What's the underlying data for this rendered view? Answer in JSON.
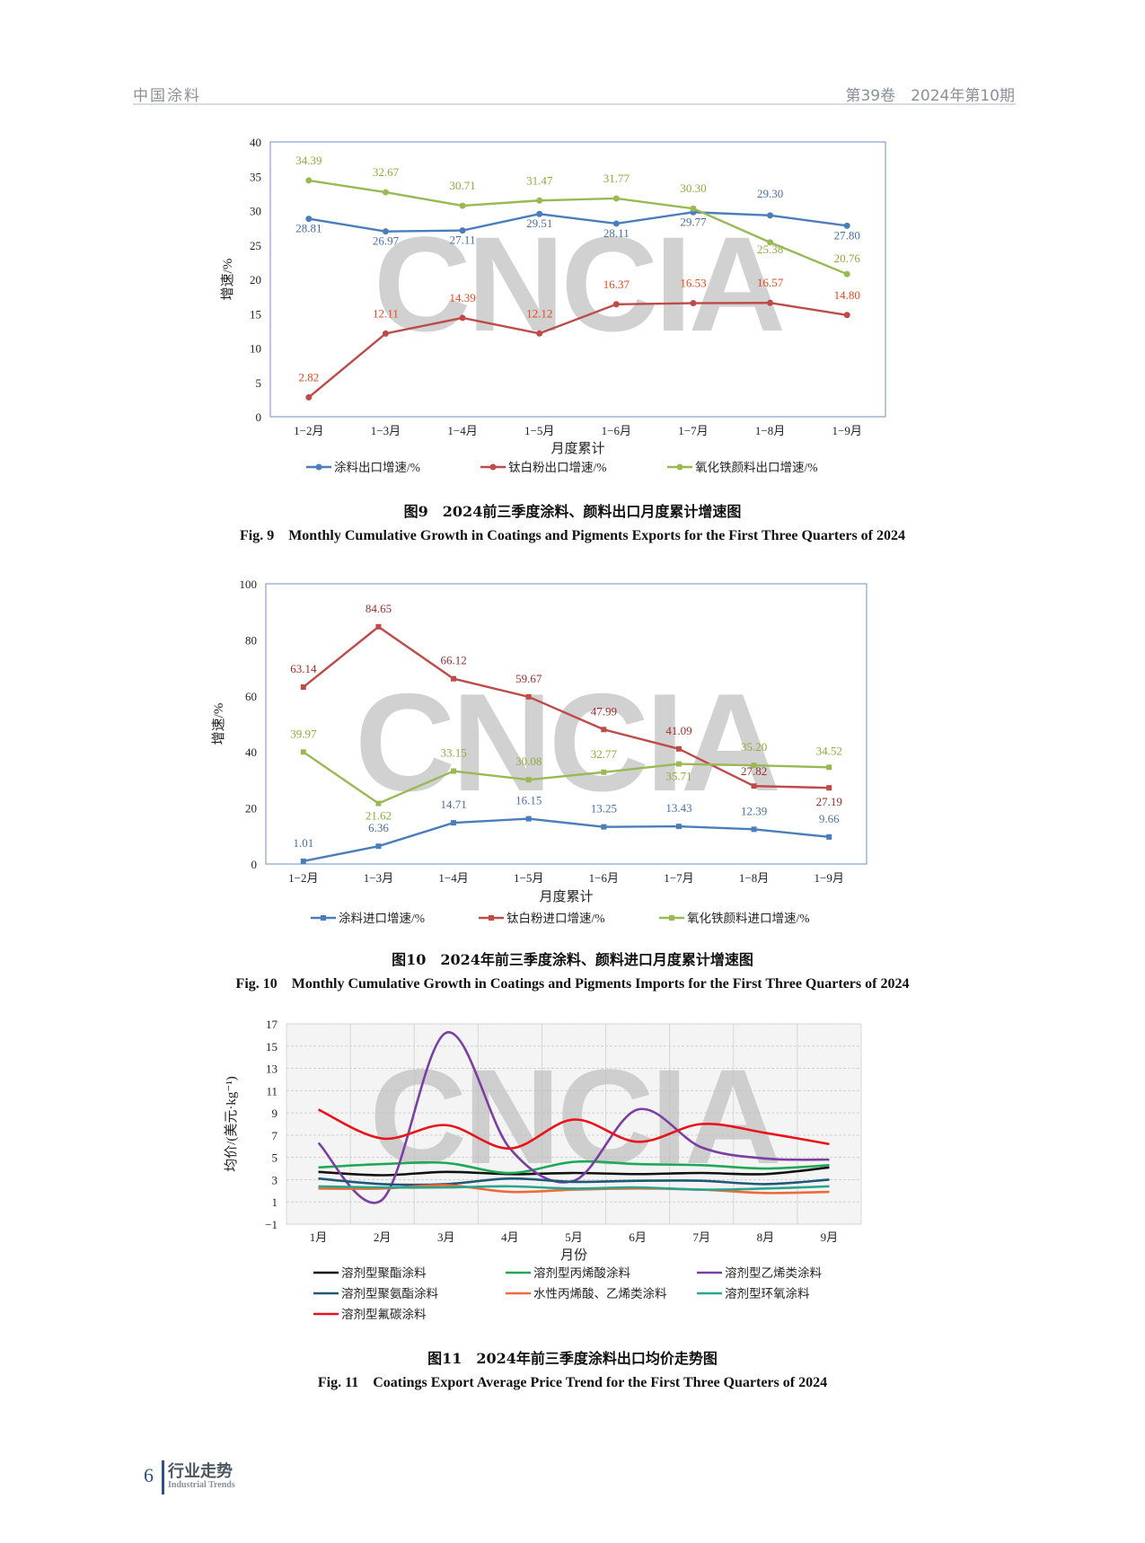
{
  "header": {
    "journal": "中国涂料",
    "issue": "第39卷　2024年第10期"
  },
  "footer": {
    "page": "6",
    "section_cn": "行业走势",
    "section_en": "Industrial Trends"
  },
  "watermark": "CNCIA",
  "chart_data": [
    {
      "type": "line",
      "caption_cn": "图9　2024前三季度涂料、颜料出口月度累计增速图",
      "caption_en": "Fig. 9　Monthly Cumulative Growth in Coatings and Pigments Exports for the First Three Quarters of 2024",
      "xlabel": "月度累计",
      "ylabel": "增速/%",
      "ylim": [
        0,
        40
      ],
      "yticks": [
        0,
        5,
        10,
        15,
        20,
        25,
        30,
        35,
        40
      ],
      "categories": [
        "1−2月",
        "1−3月",
        "1−4月",
        "1−5月",
        "1−6月",
        "1−7月",
        "1−8月",
        "1−9月"
      ],
      "legend_position": "bottom",
      "series": [
        {
          "name": "涂料出口增速/%",
          "color": "#4a7ebb",
          "label_color": "#4a6fa5",
          "values": [
            28.81,
            26.97,
            27.11,
            29.51,
            28.11,
            29.77,
            29.3,
            27.8
          ]
        },
        {
          "name": "钛白粉出口增速/%",
          "color": "#be4b48",
          "label_color": "#e8481c",
          "values": [
            2.82,
            12.11,
            14.39,
            12.12,
            16.37,
            16.53,
            16.57,
            14.8
          ]
        },
        {
          "name": "氧化铁颜料出口增速/%",
          "color": "#98b954",
          "label_color": "#8faa3c",
          "values": [
            34.39,
            32.67,
            30.71,
            31.47,
            31.77,
            30.3,
            25.38,
            20.76
          ]
        }
      ]
    },
    {
      "type": "line",
      "caption_cn": "图10　2024年前三季度涂料、颜料进口月度累计增速图",
      "caption_en": "Fig. 10　Monthly Cumulative Growth in Coatings and Pigments Imports for the First Three Quarters of 2024",
      "xlabel": "月度累计",
      "ylabel": "增速/%",
      "ylim": [
        0,
        100
      ],
      "yticks": [
        0,
        20,
        40,
        60,
        80,
        100
      ],
      "categories": [
        "1−2月",
        "1−3月",
        "1−4月",
        "1−5月",
        "1−6月",
        "1−7月",
        "1−8月",
        "1−9月"
      ],
      "legend_position": "bottom",
      "series": [
        {
          "name": "涂料进口增速/%",
          "color": "#4a7ebb",
          "label_color": "#4a6fa5",
          "values": [
            1.01,
            6.36,
            14.71,
            16.15,
            13.25,
            13.43,
            12.39,
            9.66
          ]
        },
        {
          "name": "钛白粉进口增速/%",
          "color": "#be4b48",
          "label_color": "#9b2c2c",
          "values": [
            63.14,
            84.65,
            66.12,
            59.67,
            47.99,
            41.09,
            27.82,
            27.19
          ]
        },
        {
          "name": "氧化铁颜料进口增速/%",
          "color": "#98b954",
          "label_color": "#8faa3c",
          "values": [
            39.97,
            21.62,
            33.15,
            30.08,
            32.77,
            35.71,
            35.2,
            34.52
          ]
        }
      ]
    },
    {
      "type": "line",
      "smooth": true,
      "grid": true,
      "caption_cn": "图11　2024年前三季度涂料出口均价走势图",
      "caption_en": "Fig. 11　Coatings Export Average Price Trend for the First Three Quarters of 2024",
      "xlabel": "月份",
      "ylabel": "均价/(美元·kg⁻¹)",
      "ylim": [
        -1,
        17
      ],
      "yticks": [
        -1,
        1,
        3,
        5,
        7,
        9,
        11,
        13,
        15,
        17
      ],
      "ytick_labels": [
        "−1",
        "1",
        "3",
        "5",
        "7",
        "9",
        "11",
        "13",
        "15",
        "17"
      ],
      "categories": [
        "1月",
        "2月",
        "3月",
        "4月",
        "5月",
        "6月",
        "7月",
        "8月",
        "9月"
      ],
      "legend_position": "bottom",
      "series": [
        {
          "name": "溶剂型聚酯涂料",
          "color": "#111111",
          "values": [
            3.7,
            3.4,
            3.7,
            3.5,
            3.6,
            3.5,
            3.6,
            3.5,
            4.1
          ]
        },
        {
          "name": "溶剂型丙烯酸涂料",
          "color": "#1fa855",
          "values": [
            4.1,
            4.4,
            4.5,
            3.6,
            4.6,
            4.4,
            4.3,
            4.0,
            4.3
          ]
        },
        {
          "name": "溶剂型乙烯类涂料",
          "color": "#7a3fa0",
          "values": [
            6.3,
            1.2,
            16.2,
            5.8,
            2.9,
            9.3,
            5.9,
            4.9,
            4.8
          ]
        },
        {
          "name": "溶剂型聚氨酯涂料",
          "color": "#1f5878",
          "values": [
            3.1,
            2.6,
            2.6,
            3.1,
            2.8,
            2.9,
            2.9,
            2.6,
            3.0
          ]
        },
        {
          "name": "水性丙烯酸、乙烯类涂料",
          "color": "#ee6a3a",
          "values": [
            2.2,
            2.2,
            2.5,
            1.9,
            2.1,
            2.2,
            2.1,
            1.8,
            1.9
          ]
        },
        {
          "name": "溶剂型环氧涂料",
          "color": "#2aa58e",
          "values": [
            2.4,
            2.3,
            2.3,
            2.4,
            2.2,
            2.3,
            2.1,
            2.2,
            2.4
          ]
        },
        {
          "name": "溶剂型氟碳涂料",
          "color": "#e8141a",
          "values": [
            9.3,
            6.7,
            7.9,
            5.8,
            8.4,
            6.4,
            8.0,
            7.2,
            6.2
          ]
        }
      ]
    }
  ]
}
